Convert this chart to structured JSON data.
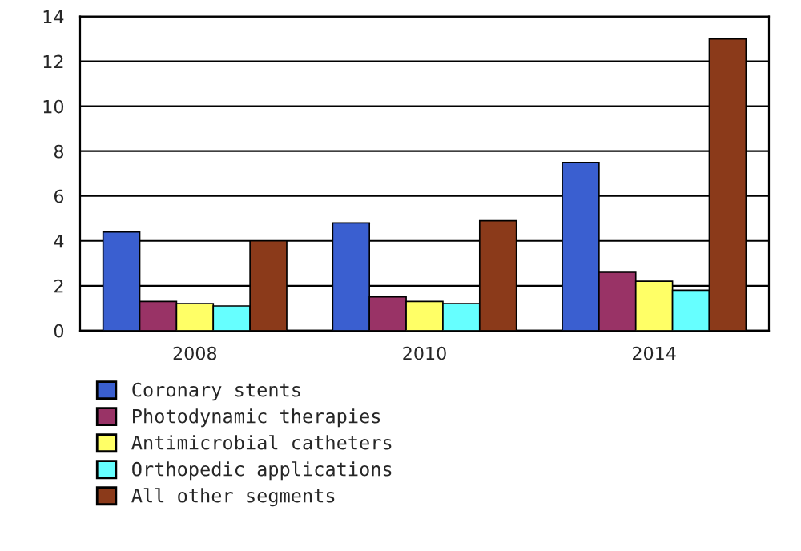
{
  "chart_data": {
    "type": "bar",
    "categories": [
      "2008",
      "2010",
      "2014"
    ],
    "series": [
      {
        "name": "Coronary stents",
        "color": "#3a5fd0",
        "values": [
          4.4,
          4.8,
          7.5
        ]
      },
      {
        "name": "Photodynamic therapies",
        "color": "#993366",
        "values": [
          1.3,
          1.5,
          2.6
        ]
      },
      {
        "name": "Antimicrobial catheters",
        "color": "#ffff66",
        "values": [
          1.2,
          1.3,
          2.2
        ]
      },
      {
        "name": "Orthopedic applications",
        "color": "#66ffff",
        "values": [
          1.1,
          1.2,
          1.8
        ]
      },
      {
        "name": "All other segments",
        "color": "#8b3a1a",
        "values": [
          4.0,
          4.9,
          13.0
        ]
      }
    ],
    "ylim": [
      0,
      14
    ],
    "yticks": [
      0,
      2,
      4,
      6,
      8,
      10,
      12,
      14
    ],
    "grid": "y",
    "legend": "bottom left"
  }
}
